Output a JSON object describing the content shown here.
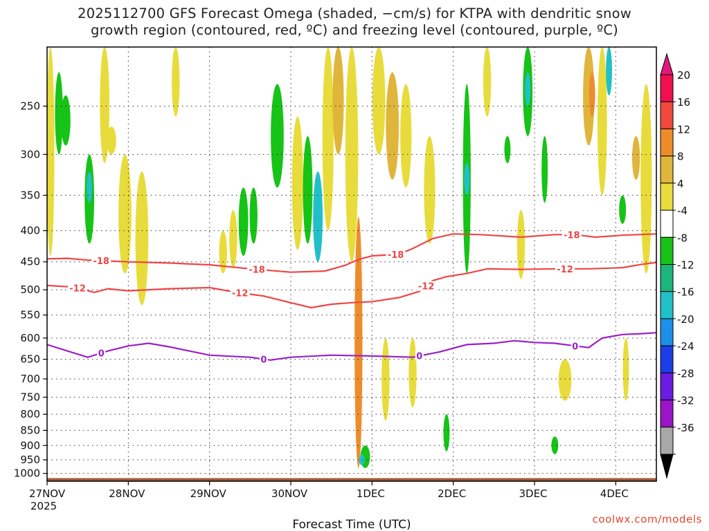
{
  "title": {
    "line1": "2025112700 GFS Forecast Omega (shaded, −cm/s) for KTPA with dendritic snow",
    "line2": "growth region (contoured, red, ºC) and freezing level (contoured, purple, ºC)"
  },
  "credit": "coolwx.com/models",
  "chart_data": {
    "type": "heatmap",
    "xlabel": "Forecast Time (UTC)",
    "ylabel": "",
    "x_ticks": [
      {
        "label": "27NOV",
        "sub": "2025",
        "hour": 0
      },
      {
        "label": "28NOV",
        "hour": 24
      },
      {
        "label": "29NOV",
        "hour": 48
      },
      {
        "label": "30NOV",
        "hour": 72
      },
      {
        "label": "1DEC",
        "hour": 96
      },
      {
        "label": "2DEC",
        "hour": 120
      },
      {
        "label": "3DEC",
        "hour": 144
      },
      {
        "label": "4DEC",
        "hour": 168
      }
    ],
    "xlim": [
      0,
      180
    ],
    "y_ticks": [
      250,
      300,
      350,
      400,
      450,
      500,
      550,
      600,
      650,
      700,
      750,
      800,
      850,
      900,
      950,
      1000
    ],
    "ylim": [
      1030,
      200
    ],
    "y_scale": "log-pressure",
    "grid": true,
    "colorbar": {
      "labels": [
        "20",
        "16",
        "12",
        "8",
        "4",
        "-4",
        "-8",
        "-12",
        "-16",
        "-20",
        "-24",
        "-28",
        "-32",
        "-36"
      ],
      "colors": [
        "#f0104f",
        "#f04a3c",
        "#ee8c2c",
        "#e0b53c",
        "#e8dc3c",
        "#ffffff",
        "#16c316",
        "#1ab57a",
        "#20c0c8",
        "#1c90e8",
        "#1c3ee8",
        "#6a1ce0",
        "#9a14c8",
        "#a8a8a8"
      ],
      "top_arrow": "#e2197a",
      "bottom_arrow": "#000000"
    },
    "series": [
      {
        "name": "-18",
        "color": "#ef4444",
        "points": [
          [
            0,
            445
          ],
          [
            6,
            444
          ],
          [
            12,
            447
          ],
          [
            24,
            450
          ],
          [
            36,
            452
          ],
          [
            48,
            455
          ],
          [
            60,
            462
          ],
          [
            72,
            468
          ],
          [
            82,
            466
          ],
          [
            88,
            456
          ],
          [
            92,
            446
          ],
          [
            96,
            440
          ],
          [
            104,
            437
          ],
          [
            108,
            428
          ],
          [
            114,
            412
          ],
          [
            120,
            405
          ],
          [
            128,
            406
          ],
          [
            140,
            410
          ],
          [
            150,
            406
          ],
          [
            156,
            406
          ],
          [
            162,
            410
          ],
          [
            170,
            407
          ],
          [
            180,
            405
          ]
        ]
      },
      {
        "name": "-12",
        "color": "#ef4444",
        "points": [
          [
            0,
            492
          ],
          [
            8,
            495
          ],
          [
            14,
            505
          ],
          [
            18,
            498
          ],
          [
            24,
            502
          ],
          [
            36,
            498
          ],
          [
            48,
            496
          ],
          [
            56,
            505
          ],
          [
            64,
            512
          ],
          [
            72,
            525
          ],
          [
            78,
            535
          ],
          [
            84,
            528
          ],
          [
            90,
            525
          ],
          [
            96,
            523
          ],
          [
            104,
            515
          ],
          [
            110,
            503
          ],
          [
            114,
            483
          ],
          [
            118,
            476
          ],
          [
            124,
            470
          ],
          [
            130,
            462
          ],
          [
            140,
            463
          ],
          [
            150,
            462
          ],
          [
            160,
            462
          ],
          [
            170,
            460
          ],
          [
            176,
            454
          ],
          [
            180,
            451
          ]
        ]
      },
      {
        "name": "0",
        "color": "#9b1fc8",
        "points": [
          [
            0,
            615
          ],
          [
            6,
            630
          ],
          [
            12,
            645
          ],
          [
            18,
            630
          ],
          [
            24,
            618
          ],
          [
            30,
            612
          ],
          [
            36,
            620
          ],
          [
            48,
            640
          ],
          [
            60,
            645
          ],
          [
            66,
            652
          ],
          [
            72,
            645
          ],
          [
            84,
            640
          ],
          [
            96,
            642
          ],
          [
            108,
            645
          ],
          [
            116,
            632
          ],
          [
            124,
            615
          ],
          [
            132,
            612
          ],
          [
            138,
            606
          ],
          [
            144,
            610
          ],
          [
            150,
            612
          ],
          [
            156,
            618
          ],
          [
            160,
            622
          ],
          [
            164,
            600
          ],
          [
            170,
            592
          ],
          [
            176,
            590
          ],
          [
            180,
            588
          ]
        ]
      }
    ],
    "contour_labels": [
      {
        "text": "-18",
        "series": "-18",
        "hour": 16
      },
      {
        "text": "-18",
        "series": "-18",
        "hour": 62
      },
      {
        "text": "-18",
        "series": "-18",
        "hour": 103
      },
      {
        "text": "-18",
        "series": "-18",
        "hour": 155
      },
      {
        "text": "-12",
        "series": "-12",
        "hour": 9
      },
      {
        "text": "-12",
        "series": "-12",
        "hour": 57
      },
      {
        "text": "-12",
        "series": "-12",
        "hour": 112
      },
      {
        "text": "-12",
        "series": "-12",
        "hour": 153
      },
      {
        "text": "0",
        "series": "0",
        "hour": 16
      },
      {
        "text": "0",
        "series": "0",
        "hour": 64
      },
      {
        "text": "0",
        "series": "0",
        "hour": 110
      },
      {
        "text": "0",
        "series": "0",
        "hour": 156
      }
    ],
    "omega_blobs": [
      {
        "hour": 1,
        "p0": 200,
        "p1": 440,
        "w": 1.5,
        "color": "#e8dc3c"
      },
      {
        "hour": 3.5,
        "p0": 220,
        "p1": 300,
        "w": 1.5,
        "color": "#16c316"
      },
      {
        "hour": 5.5,
        "p0": 240,
        "p1": 290,
        "w": 2,
        "color": "#16c316"
      },
      {
        "hour": 12.5,
        "p0": 300,
        "p1": 420,
        "w": 2,
        "color": "#16c316"
      },
      {
        "hour": 12.5,
        "p0": 320,
        "p1": 360,
        "w": 0.8,
        "color": "#20c0c8"
      },
      {
        "hour": 17,
        "p0": 200,
        "p1": 310,
        "w": 2,
        "color": "#e8dc3c"
      },
      {
        "hour": 19,
        "p0": 270,
        "p1": 300,
        "w": 2,
        "color": "#e8dc3c"
      },
      {
        "hour": 23,
        "p0": 300,
        "p1": 470,
        "w": 3,
        "color": "#e8dc3c"
      },
      {
        "hour": 28,
        "p0": 320,
        "p1": 530,
        "w": 3,
        "color": "#e8dc3c"
      },
      {
        "hour": 38,
        "p0": 200,
        "p1": 260,
        "w": 1.5,
        "color": "#e8dc3c"
      },
      {
        "hour": 52,
        "p0": 400,
        "p1": 470,
        "w": 1.5,
        "color": "#e8dc3c"
      },
      {
        "hour": 55,
        "p0": 370,
        "p1": 460,
        "w": 1.5,
        "color": "#e8dc3c"
      },
      {
        "hour": 58,
        "p0": 340,
        "p1": 440,
        "w": 2,
        "color": "#16c316"
      },
      {
        "hour": 61,
        "p0": 340,
        "p1": 420,
        "w": 1.5,
        "color": "#16c316"
      },
      {
        "hour": 68,
        "p0": 230,
        "p1": 340,
        "w": 3,
        "color": "#16c316"
      },
      {
        "hour": 74,
        "p0": 260,
        "p1": 430,
        "w": 2.5,
        "color": "#e8dc3c"
      },
      {
        "hour": 77,
        "p0": 280,
        "p1": 420,
        "w": 2,
        "color": "#16c316"
      },
      {
        "hour": 80,
        "p0": 320,
        "p1": 450,
        "w": 2,
        "color": "#20c0c8"
      },
      {
        "hour": 83,
        "p0": 200,
        "p1": 400,
        "w": 2.5,
        "color": "#e8dc3c"
      },
      {
        "hour": 86,
        "p0": 200,
        "p1": 300,
        "w": 2.5,
        "color": "#e0b53c"
      },
      {
        "hour": 90,
        "p0": 200,
        "p1": 450,
        "w": 3,
        "color": "#e8dc3c"
      },
      {
        "hour": 92,
        "p0": 380,
        "p1": 980,
        "w": 1.5,
        "color": "#ee8c2c"
      },
      {
        "hour": 94,
        "p0": 900,
        "p1": 980,
        "w": 2,
        "color": "#16c316"
      },
      {
        "hour": 93,
        "p0": 930,
        "p1": 970,
        "w": 0.8,
        "color": "#20c0c8"
      },
      {
        "hour": 98,
        "p0": 200,
        "p1": 300,
        "w": 3,
        "color": "#e8dc3c"
      },
      {
        "hour": 102,
        "p0": 220,
        "p1": 330,
        "w": 3,
        "color": "#e0b53c"
      },
      {
        "hour": 106,
        "p0": 230,
        "p1": 340,
        "w": 2.5,
        "color": "#e8dc3c"
      },
      {
        "hour": 100,
        "p0": 600,
        "p1": 820,
        "w": 1.5,
        "color": "#e8dc3c"
      },
      {
        "hour": 108,
        "p0": 600,
        "p1": 780,
        "w": 1.5,
        "color": "#e8dc3c"
      },
      {
        "hour": 113,
        "p0": 280,
        "p1": 420,
        "w": 2.5,
        "color": "#e8dc3c"
      },
      {
        "hour": 118,
        "p0": 800,
        "p1": 920,
        "w": 1,
        "color": "#16c316"
      },
      {
        "hour": 124,
        "p0": 230,
        "p1": 470,
        "w": 1.5,
        "color": "#16c316"
      },
      {
        "hour": 124,
        "p0": 310,
        "p1": 350,
        "w": 0.8,
        "color": "#20c0c8"
      },
      {
        "hour": 130,
        "p0": 200,
        "p1": 260,
        "w": 1.5,
        "color": "#e8dc3c"
      },
      {
        "hour": 136,
        "p0": 280,
        "p1": 310,
        "w": 1,
        "color": "#16c316"
      },
      {
        "hour": 140,
        "p0": 370,
        "p1": 480,
        "w": 1.5,
        "color": "#e8dc3c"
      },
      {
        "hour": 142,
        "p0": 200,
        "p1": 280,
        "w": 2,
        "color": "#16c316"
      },
      {
        "hour": 142,
        "p0": 220,
        "p1": 250,
        "w": 0.8,
        "color": "#20c0c8"
      },
      {
        "hour": 147,
        "p0": 280,
        "p1": 360,
        "w": 1,
        "color": "#16c316"
      },
      {
        "hour": 153,
        "p0": 650,
        "p1": 760,
        "w": 3,
        "color": "#e8dc3c"
      },
      {
        "hour": 150,
        "p0": 870,
        "p1": 930,
        "w": 1.2,
        "color": "#16c316"
      },
      {
        "hour": 160,
        "p0": 200,
        "p1": 290,
        "w": 2.5,
        "color": "#e0b53c"
      },
      {
        "hour": 161,
        "p0": 220,
        "p1": 260,
        "w": 1,
        "color": "#ee8c2c"
      },
      {
        "hour": 164,
        "p0": 200,
        "p1": 350,
        "w": 2,
        "color": "#e8dc3c"
      },
      {
        "hour": 166,
        "p0": 200,
        "p1": 240,
        "w": 1,
        "color": "#20c0c8"
      },
      {
        "hour": 170,
        "p0": 350,
        "p1": 390,
        "w": 1.2,
        "color": "#16c316"
      },
      {
        "hour": 174,
        "p0": 280,
        "p1": 330,
        "w": 1.5,
        "color": "#e0b53c"
      },
      {
        "hour": 177,
        "p0": 230,
        "p1": 470,
        "w": 2.5,
        "color": "#e8dc3c"
      },
      {
        "hour": 171,
        "p0": 600,
        "p1": 760,
        "w": 1,
        "color": "#e8dc3c"
      }
    ],
    "terrain": {
      "color": "#a55a36",
      "top_pressure": 1018
    }
  }
}
